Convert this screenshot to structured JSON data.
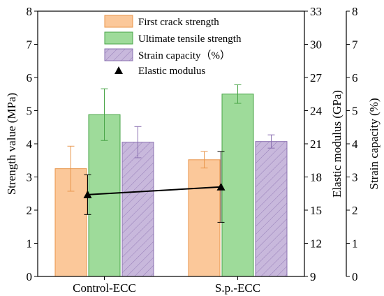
{
  "chart_data": {
    "type": "bar",
    "categories": [
      "Control-ECC",
      "S.p.-ECC"
    ],
    "series": [
      {
        "name": "First crack strength",
        "axis": "left",
        "values": [
          3.25,
          3.52
        ],
        "errors": [
          0.68,
          0.25
        ],
        "color": "#fbc89a",
        "edge": "#e8954a"
      },
      {
        "name": "Ultimate tensile strength",
        "axis": "left",
        "values": [
          4.88,
          5.5
        ],
        "errors": [
          0.78,
          0.28
        ],
        "color": "#9edb9a",
        "edge": "#4aa548"
      },
      {
        "name": "Strain capacity（%）",
        "axis": "right2",
        "values": [
          4.05,
          4.07
        ],
        "errors": [
          0.47,
          0.2
        ],
        "color": "#c8b8dc",
        "edge": "#8a70b0",
        "hatch": true
      }
    ],
    "line_series": {
      "name": "Elastic modulus",
      "axis": "right1",
      "values": [
        16.4,
        17.1
      ],
      "errors": [
        1.8,
        3.2
      ],
      "marker": "triangle",
      "color": "#000000"
    },
    "left_axis": {
      "label": "Strength value (MPa)",
      "ylim": [
        0,
        8
      ],
      "ticks": [
        "0",
        "1",
        "2",
        "3",
        "4",
        "5",
        "6",
        "7",
        "8"
      ]
    },
    "right1_axis": {
      "label": "Elastic modulus (GPa)",
      "ylim": [
        9,
        33
      ],
      "ticks": [
        "9",
        "12",
        "15",
        "18",
        "21",
        "24",
        "27",
        "30",
        "33"
      ]
    },
    "right2_axis": {
      "label": "Strain capacity (%)",
      "ylim": [
        0,
        8
      ],
      "ticks": [
        "0",
        "1",
        "2",
        "3",
        "4",
        "5",
        "6",
        "7",
        "8"
      ]
    },
    "legend": {
      "position": "top-center"
    }
  }
}
